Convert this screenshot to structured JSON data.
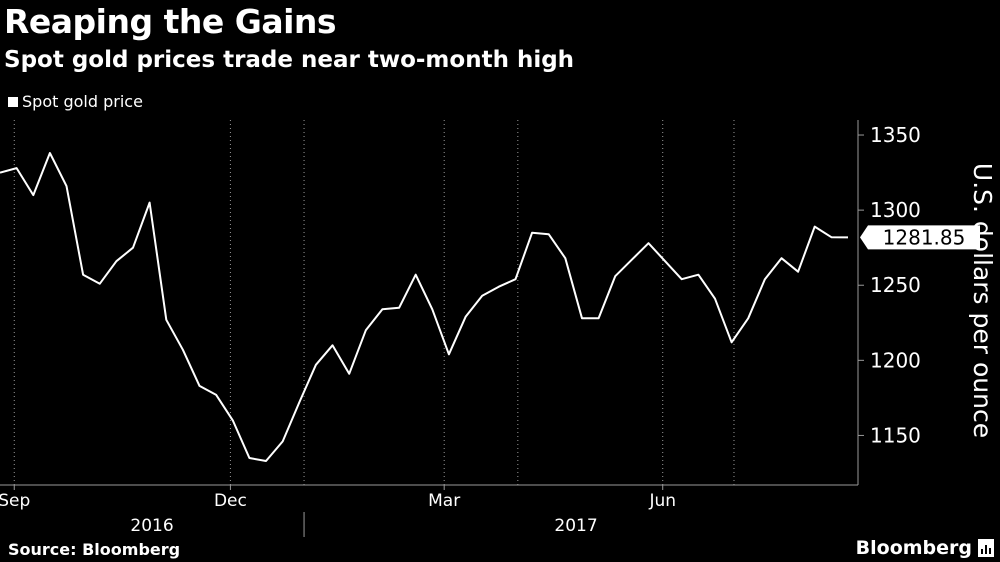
{
  "header": {
    "title": "Reaping the Gains",
    "subtitle": "Spot gold prices trade near two-month high"
  },
  "legend": {
    "label": "Spot gold price"
  },
  "footer": {
    "source": "Source: Bloomberg",
    "brand": "Bloomberg"
  },
  "colors": {
    "background": "#000000",
    "line": "#ffffff",
    "grid": "#9a9a9a",
    "text": "#ffffff"
  },
  "chart_data": {
    "type": "line",
    "title": "Reaping the Gains",
    "subtitle": "Spot gold prices trade near two-month high",
    "ylabel": "U.S. dollars per ounce",
    "ylim": [
      1117,
      1360
    ],
    "yticks": [
      1150,
      1200,
      1250,
      1300,
      1350
    ],
    "xlim": [
      "2016-08-26",
      "2017-08-18"
    ],
    "xticks": [
      {
        "label": "Sep",
        "date": "2016-09-01"
      },
      {
        "label": "Dec",
        "date": "2016-12-01"
      },
      {
        "label": "Mar",
        "date": "2017-03-01"
      },
      {
        "label": "Jun",
        "date": "2017-06-01"
      }
    ],
    "year_labels": [
      {
        "label": "2016",
        "start": "2016-08-26",
        "end": "2017-01-01"
      },
      {
        "label": "2017",
        "start": "2017-01-01",
        "end": "2017-08-18"
      }
    ],
    "grid": "vertical",
    "legend_position": "top-left",
    "last_value_label": "1281.85",
    "series": [
      {
        "name": "Spot gold price",
        "x": [
          "2016-08-26",
          "2016-09-02",
          "2016-09-09",
          "2016-09-16",
          "2016-09-23",
          "2016-09-30",
          "2016-10-07",
          "2016-10-14",
          "2016-10-21",
          "2016-10-28",
          "2016-11-04",
          "2016-11-11",
          "2016-11-18",
          "2016-11-25",
          "2016-12-02",
          "2016-12-09",
          "2016-12-16",
          "2016-12-23",
          "2016-12-30",
          "2017-01-06",
          "2017-01-13",
          "2017-01-20",
          "2017-01-27",
          "2017-02-03",
          "2017-02-10",
          "2017-02-17",
          "2017-02-24",
          "2017-03-03",
          "2017-03-10",
          "2017-03-17",
          "2017-03-24",
          "2017-03-31",
          "2017-04-07",
          "2017-04-14",
          "2017-04-21",
          "2017-04-28",
          "2017-05-05",
          "2017-05-12",
          "2017-05-19",
          "2017-05-26",
          "2017-06-02",
          "2017-06-09",
          "2017-06-16",
          "2017-06-23",
          "2017-06-30",
          "2017-07-07",
          "2017-07-14",
          "2017-07-21",
          "2017-07-28",
          "2017-08-04",
          "2017-08-11",
          "2017-08-18"
        ],
        "values": [
          1325,
          1328,
          1310,
          1338,
          1316,
          1257,
          1251,
          1266,
          1275,
          1305,
          1227,
          1207,
          1183,
          1177,
          1160,
          1135,
          1133,
          1146,
          1172,
          1197,
          1210,
          1191,
          1220,
          1234,
          1235,
          1257,
          1234,
          1204,
          1229,
          1243,
          1249,
          1254,
          1285,
          1284,
          1268,
          1228,
          1228,
          1256,
          1267,
          1278,
          1266,
          1254,
          1257,
          1241,
          1212,
          1228,
          1254,
          1268,
          1259,
          1289,
          1282,
          1281.85
        ]
      }
    ]
  }
}
